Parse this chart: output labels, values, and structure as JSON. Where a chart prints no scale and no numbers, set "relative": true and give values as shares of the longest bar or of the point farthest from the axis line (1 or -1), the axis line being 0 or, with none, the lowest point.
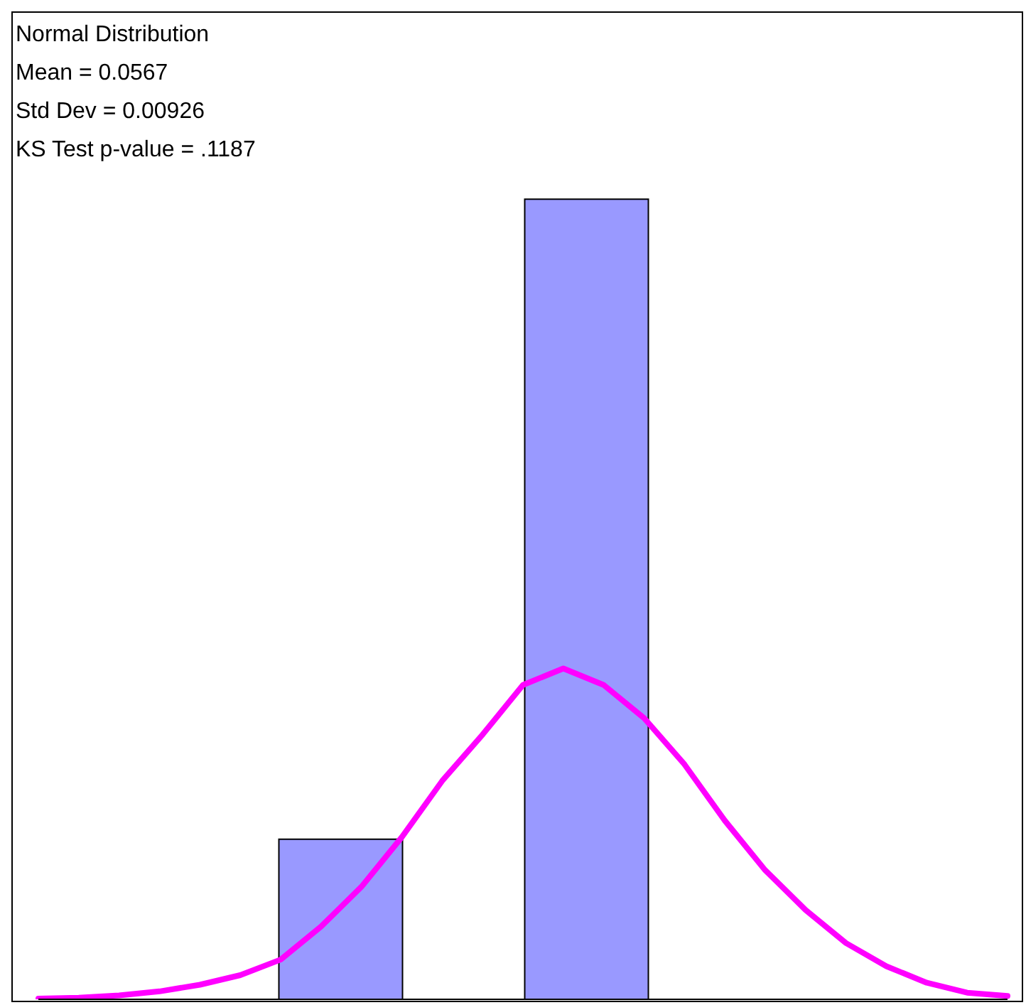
{
  "chart_data": [
    {
      "type": "bar",
      "relative": true,
      "categories": [
        null,
        null
      ],
      "values": [
        0.2,
        1
      ],
      "color": "#9999ff",
      "annotations": [
        "Normal Distribution",
        "Mean = 0.0567",
        "Std Dev = 0.00926",
        "KS Test p-value = .1187"
      ]
    },
    {
      "type": "line",
      "relative": true,
      "categories": [
        null,
        null,
        null,
        null,
        null,
        null,
        null,
        null,
        null,
        null,
        null,
        null,
        null,
        null,
        null,
        null,
        null,
        null,
        null,
        null,
        null,
        null,
        null,
        null,
        null
      ],
      "values": [
        0.002,
        0.005,
        0.012,
        0.024,
        0.044,
        0.073,
        0.12,
        0.22,
        0.34,
        0.49,
        0.66,
        0.8,
        0.95,
        1,
        0.95,
        0.85,
        0.71,
        0.54,
        0.39,
        0.27,
        0.17,
        0.1,
        0.05,
        0.02,
        0.01
      ],
      "color": "#ff00ff"
    }
  ]
}
